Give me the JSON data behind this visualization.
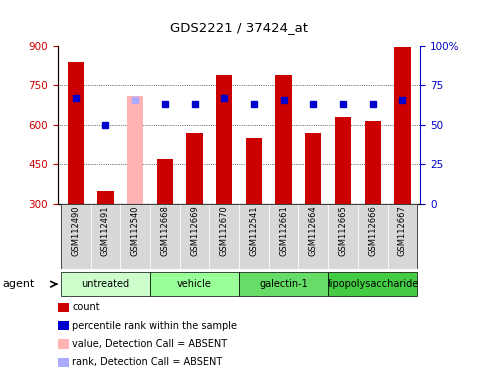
{
  "title": "GDS2221 / 37424_at",
  "samples": [
    "GSM112490",
    "GSM112491",
    "GSM112540",
    "GSM112668",
    "GSM112669",
    "GSM112670",
    "GSM112541",
    "GSM112661",
    "GSM112664",
    "GSM112665",
    "GSM112666",
    "GSM112667"
  ],
  "bar_values": [
    840,
    348,
    710,
    470,
    568,
    790,
    548,
    790,
    568,
    630,
    615,
    895
  ],
  "bar_colors": [
    "#cc0000",
    "#cc0000",
    "#ffb3b3",
    "#cc0000",
    "#cc0000",
    "#cc0000",
    "#cc0000",
    "#cc0000",
    "#cc0000",
    "#cc0000",
    "#cc0000",
    "#cc0000"
  ],
  "dot_values": [
    67,
    50,
    66,
    63,
    63,
    67,
    63,
    66,
    63,
    63,
    63,
    66
  ],
  "dot_colors": [
    "#0000cc",
    "#0000cc",
    "#aaaaff",
    "#0000cc",
    "#0000cc",
    "#0000cc",
    "#0000cc",
    "#0000cc",
    "#0000cc",
    "#0000cc",
    "#0000cc",
    "#0000cc"
  ],
  "absent_index": 2,
  "ylim_left": [
    300,
    900
  ],
  "ylim_right": [
    0,
    100
  ],
  "yticks_left": [
    300,
    450,
    600,
    750,
    900
  ],
  "yticks_right": [
    0,
    25,
    50,
    75,
    100
  ],
  "groups": [
    {
      "label": "untreated",
      "start": 0,
      "end": 3,
      "color": "#ccffcc"
    },
    {
      "label": "vehicle",
      "start": 3,
      "end": 6,
      "color": "#99ff99"
    },
    {
      "label": "galectin-1",
      "start": 6,
      "end": 9,
      "color": "#66dd66"
    },
    {
      "label": "lipopolysaccharide",
      "start": 9,
      "end": 12,
      "color": "#44cc44"
    }
  ],
  "legend_colors": [
    "#cc0000",
    "#0000cc",
    "#ffb3b3",
    "#aaaaff"
  ],
  "legend_labels": [
    "count",
    "percentile rank within the sample",
    "value, Detection Call = ABSENT",
    "rank, Detection Call = ABSENT"
  ],
  "bar_width": 0.55,
  "background_color": "#ffffff",
  "bar_bottom": 300,
  "ylabel_left_color": "#cc0000",
  "ylabel_right_color": "#0000cc"
}
